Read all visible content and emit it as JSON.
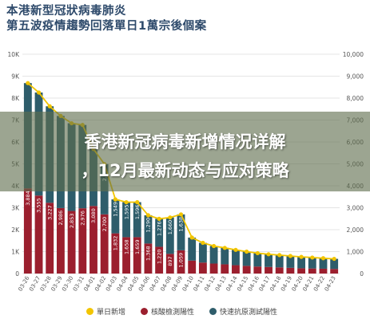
{
  "title_line1": "本港新型冠狀病毒肺炎",
  "title_line2": "第五波疫情趨勢回落單日1萬宗後個案",
  "overlay_line1": "香港新冠病毒新增情况详解",
  "overlay_line2": "，12月最新动态与应对策略",
  "colors": {
    "daily_line": "#f2c500",
    "pcr": "#9b1f2e",
    "rat": "#2e5d6b",
    "overlay": "#606e4e"
  },
  "chart_data": {
    "type": "bar",
    "stacked": true,
    "categories": [
      "03-26",
      "03-27",
      "03-28",
      "03-29",
      "03-30",
      "03-31",
      "04-01",
      "04-02",
      "04-03",
      "04-04",
      "04-05",
      "04-06",
      "04-07",
      "04-08",
      "04-09",
      "04-10",
      "04-11",
      "04-12",
      "04-13",
      "04-14",
      "04-15",
      "04-16",
      "04-17",
      "04-18",
      "04-19",
      "04-20",
      "04-21",
      "04-22",
      "04-23"
    ],
    "series": [
      {
        "name": "核酸檢測陽性",
        "values": [
          3884,
          3555,
          3227,
          2986,
          2853,
          2976,
          3080,
          2700,
          1832,
          1658,
          1659,
          1368,
          1220,
          897,
          1059,
          590,
          500,
          455,
          420,
          380,
          350,
          320,
          300,
          280,
          260,
          240,
          230,
          220,
          210
        ]
      },
      {
        "name": "快速抗原測試陽性",
        "values": [
          4800,
          4700,
          4400,
          4200,
          4000,
          3800,
          2600,
          2289,
          1549,
          1595,
          1596,
          1290,
          1276,
          1660,
          1638,
          1050,
          900,
          800,
          750,
          700,
          650,
          610,
          580,
          560,
          540,
          520,
          500,
          480,
          460
        ]
      },
      {
        "name": "單日新增",
        "values": [
          8684,
          8255,
          7627,
          7186,
          6853,
          6776,
          5680,
          4989,
          3381,
          3253,
          3255,
          2658,
          2496,
          2557,
          2697,
          1640,
          1400,
          1255,
          1170,
          1080,
          1000,
          930,
          880,
          840,
          800,
          760,
          730,
          700,
          670
        ]
      }
    ],
    "bar_labels_pcr": [
      "3,884",
      "3,555",
      "3,227",
      "2,986",
      "2,853",
      "2,976",
      "3,080",
      "2,700",
      "1,832",
      "1,658",
      "1,659",
      "1,368",
      "1,220",
      "897",
      "1,059",
      "",
      "",
      "",
      "",
      "",
      "",
      "",
      "",
      "",
      "",
      "",
      "",
      "",
      ""
    ],
    "bar_labels_rat": [
      "",
      "",
      "",
      "",
      "",
      "",
      "",
      "2,289",
      "1,549",
      "1,595",
      "1,596",
      "1,290",
      "1,276",
      "1,660",
      "1,638",
      "",
      "",
      "",
      "",
      "",
      "",
      "",
      "",
      "",
      "",
      "",
      "",
      "",
      ""
    ],
    "left_ticks": [
      "0",
      "1K",
      "2K",
      "3K",
      "4K",
      "5K",
      "6K",
      "7K",
      "8K",
      "9K",
      "10K"
    ],
    "right_ticks": [
      "0",
      "1,000",
      "2,000",
      "3,000",
      "4,000",
      "5,000",
      "6,000",
      "7,000",
      "8,000",
      "9,000",
      "10,000"
    ],
    "ylim": [
      0,
      10000
    ],
    "legend": [
      "單日新增",
      "核酸檢測陽性",
      "快速抗原測試陽性"
    ]
  }
}
